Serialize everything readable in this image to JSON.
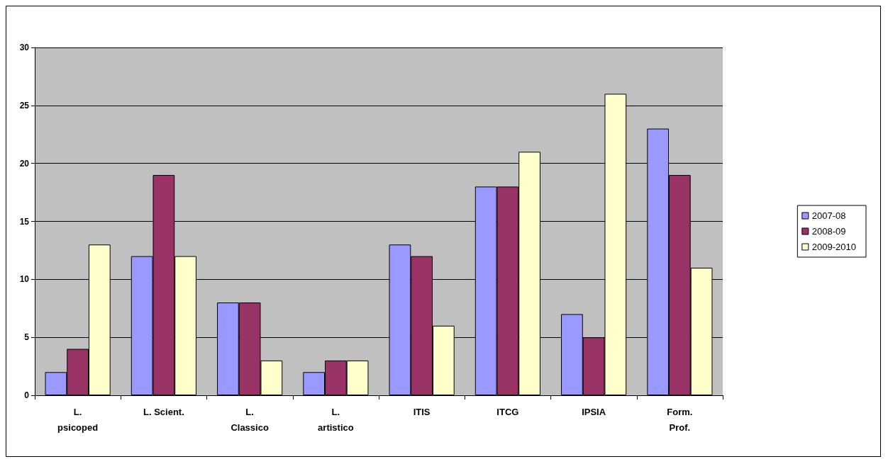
{
  "chart_data": {
    "type": "bar",
    "categories": [
      "L. psicoped",
      "L. Scient.",
      "L. Classico",
      "L. artistico",
      "ITIS",
      "ITCG",
      "IPSIA",
      "Form. Prof."
    ],
    "series": [
      {
        "name": "2007-08",
        "color": "#9999ff",
        "values": [
          2,
          12,
          8,
          2,
          13,
          18,
          7,
          23
        ]
      },
      {
        "name": "2008-09",
        "color": "#993366",
        "values": [
          4,
          19,
          8,
          3,
          12,
          18,
          5,
          19
        ]
      },
      {
        "name": "2009-2010",
        "color": "#ffffcc",
        "values": [
          13,
          12,
          3,
          3,
          6,
          21,
          26,
          11
        ]
      }
    ],
    "ylim": [
      0,
      30
    ],
    "yticks": [
      0,
      5,
      10,
      15,
      20,
      25,
      30
    ],
    "grid": "y",
    "legend": "right"
  }
}
